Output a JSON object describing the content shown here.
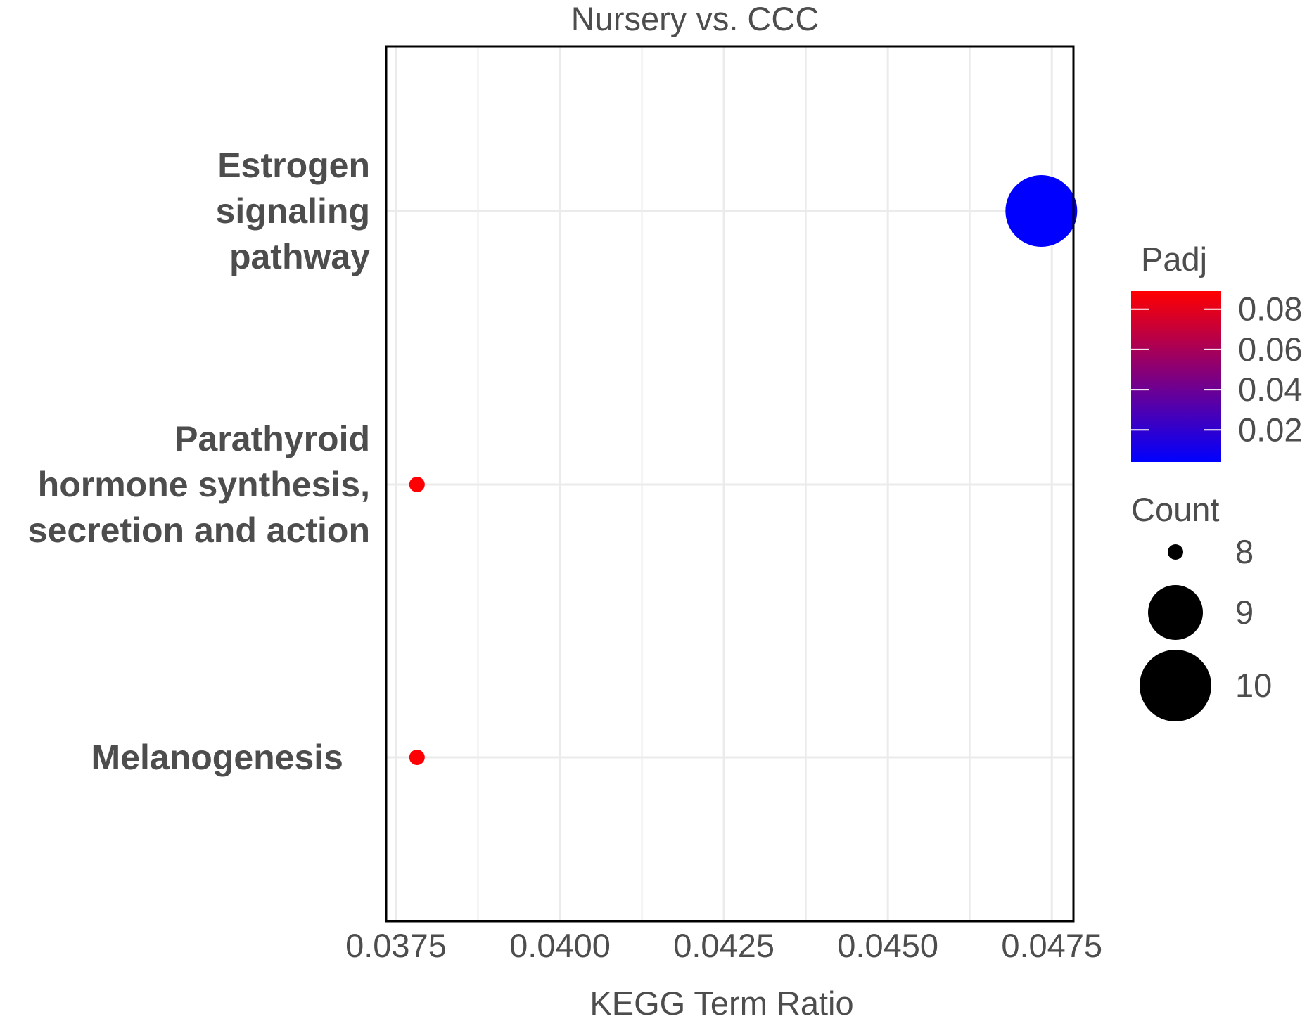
{
  "chart_data": {
    "type": "scatter",
    "title": "Nursery vs. CCC",
    "xlabel": "KEGG Term Ratio",
    "ylabel": "",
    "xlim": [
      0.03735,
      0.04783
    ],
    "x_ticks": [
      "0.0375",
      "0.0400",
      "0.0425",
      "0.0450",
      "0.0475"
    ],
    "categories": [
      "Estrogen signaling pathway",
      "Parathyroid hormone synthesis, secretion and action",
      "Melanogenesis"
    ],
    "category_lines": [
      [
        "Estrogen",
        "signaling",
        "pathway"
      ],
      [
        "Parathyroid",
        "hormone synthesis,",
        "secretion and action"
      ],
      [
        "Melanogenesis"
      ]
    ],
    "points": [
      {
        "term": "Estrogen signaling pathway",
        "ratio": 0.04734,
        "count": 10,
        "padj": 0.004
      },
      {
        "term": "Parathyroid hormone synthesis, secretion and action",
        "ratio": 0.03782,
        "count": 8,
        "padj": 0.088
      },
      {
        "term": "Melanogenesis",
        "ratio": 0.03782,
        "count": 8,
        "padj": 0.088
      }
    ],
    "grid": true,
    "legend_position": "right",
    "color_legend": {
      "title": "Padj",
      "low_color": "#0000ff",
      "high_color": "#ff0000",
      "range": [
        0.004,
        0.089
      ],
      "ticks": [
        "0.08",
        "0.06",
        "0.04",
        "0.02"
      ]
    },
    "size_legend": {
      "title": "Count",
      "entries": [
        "8",
        "9",
        "10"
      ]
    }
  }
}
